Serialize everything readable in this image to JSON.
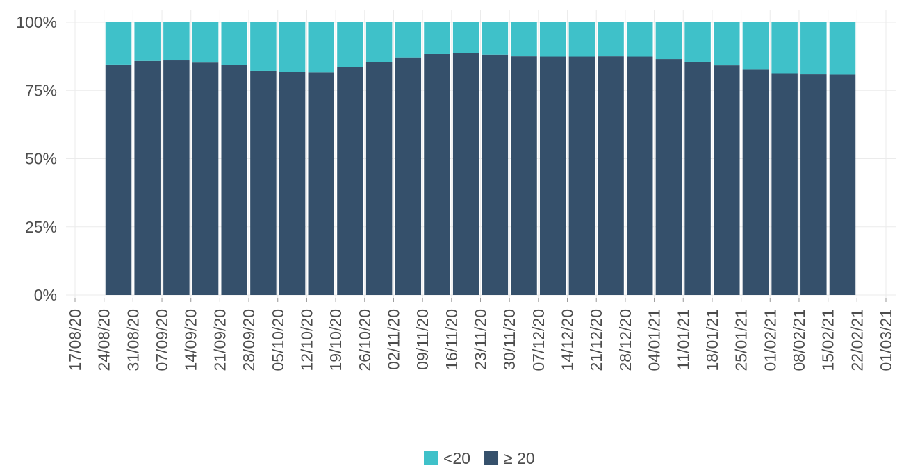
{
  "chart_data": {
    "type": "stacked_bar",
    "x": [
      "24/08/20",
      "31/08/20",
      "07/09/20",
      "14/09/20",
      "21/09/20",
      "28/09/20",
      "05/10/20",
      "12/10/20",
      "19/10/20",
      "26/10/20",
      "02/11/20",
      "09/11/20",
      "16/11/20",
      "23/11/20",
      "30/11/20",
      "07/12/20",
      "14/12/20",
      "21/12/20",
      "28/12/20",
      "04/01/21",
      "11/01/21",
      "18/01/21",
      "25/01/21",
      "01/02/21",
      "08/02/21",
      "15/02/21"
    ],
    "xticks": [
      "17/08/20",
      "24/08/20",
      "31/08/20",
      "07/09/20",
      "14/09/20",
      "21/09/20",
      "28/09/20",
      "05/10/20",
      "12/10/20",
      "19/10/20",
      "26/10/20",
      "02/11/20",
      "09/11/20",
      "16/11/20",
      "23/11/20",
      "30/11/20",
      "07/12/20",
      "14/12/20",
      "21/12/20",
      "28/12/20",
      "04/01/21",
      "11/01/21",
      "18/01/21",
      "25/01/21",
      "01/02/21",
      "08/02/21",
      "15/02/21",
      "22/02/21",
      "01/03/21"
    ],
    "series": [
      {
        "name": "<20",
        "color": "#3fc1c9",
        "values": [
          15.5,
          14.2,
          14,
          14.8,
          15.6,
          17.8,
          18.1,
          18.4,
          16.3,
          14.7,
          12.9,
          11.7,
          11.2,
          11.9,
          12.5,
          12.6,
          12.6,
          12.5,
          12.6,
          13.5,
          14.5,
          15.8,
          17.4,
          18.7,
          19.1,
          19.2
        ]
      },
      {
        "name": "≥ 20",
        "color": "#35506b",
        "values": [
          84.5,
          85.8,
          86,
          85.2,
          84.4,
          82.2,
          81.9,
          81.6,
          83.7,
          85.3,
          87.1,
          88.3,
          88.8,
          88.1,
          87.5,
          87.4,
          87.4,
          87.5,
          87.4,
          86.5,
          85.5,
          84.2,
          82.6,
          81.3,
          80.9,
          80.8
        ]
      }
    ],
    "ylim": [
      0,
      100
    ],
    "yticks": [
      {
        "value": 0,
        "label": "0%"
      },
      {
        "value": 25,
        "label": "25%"
      },
      {
        "value": 50,
        "label": "50%"
      },
      {
        "value": 75,
        "label": "75%"
      },
      {
        "value": 100,
        "label": "100%"
      }
    ],
    "grid": true
  }
}
